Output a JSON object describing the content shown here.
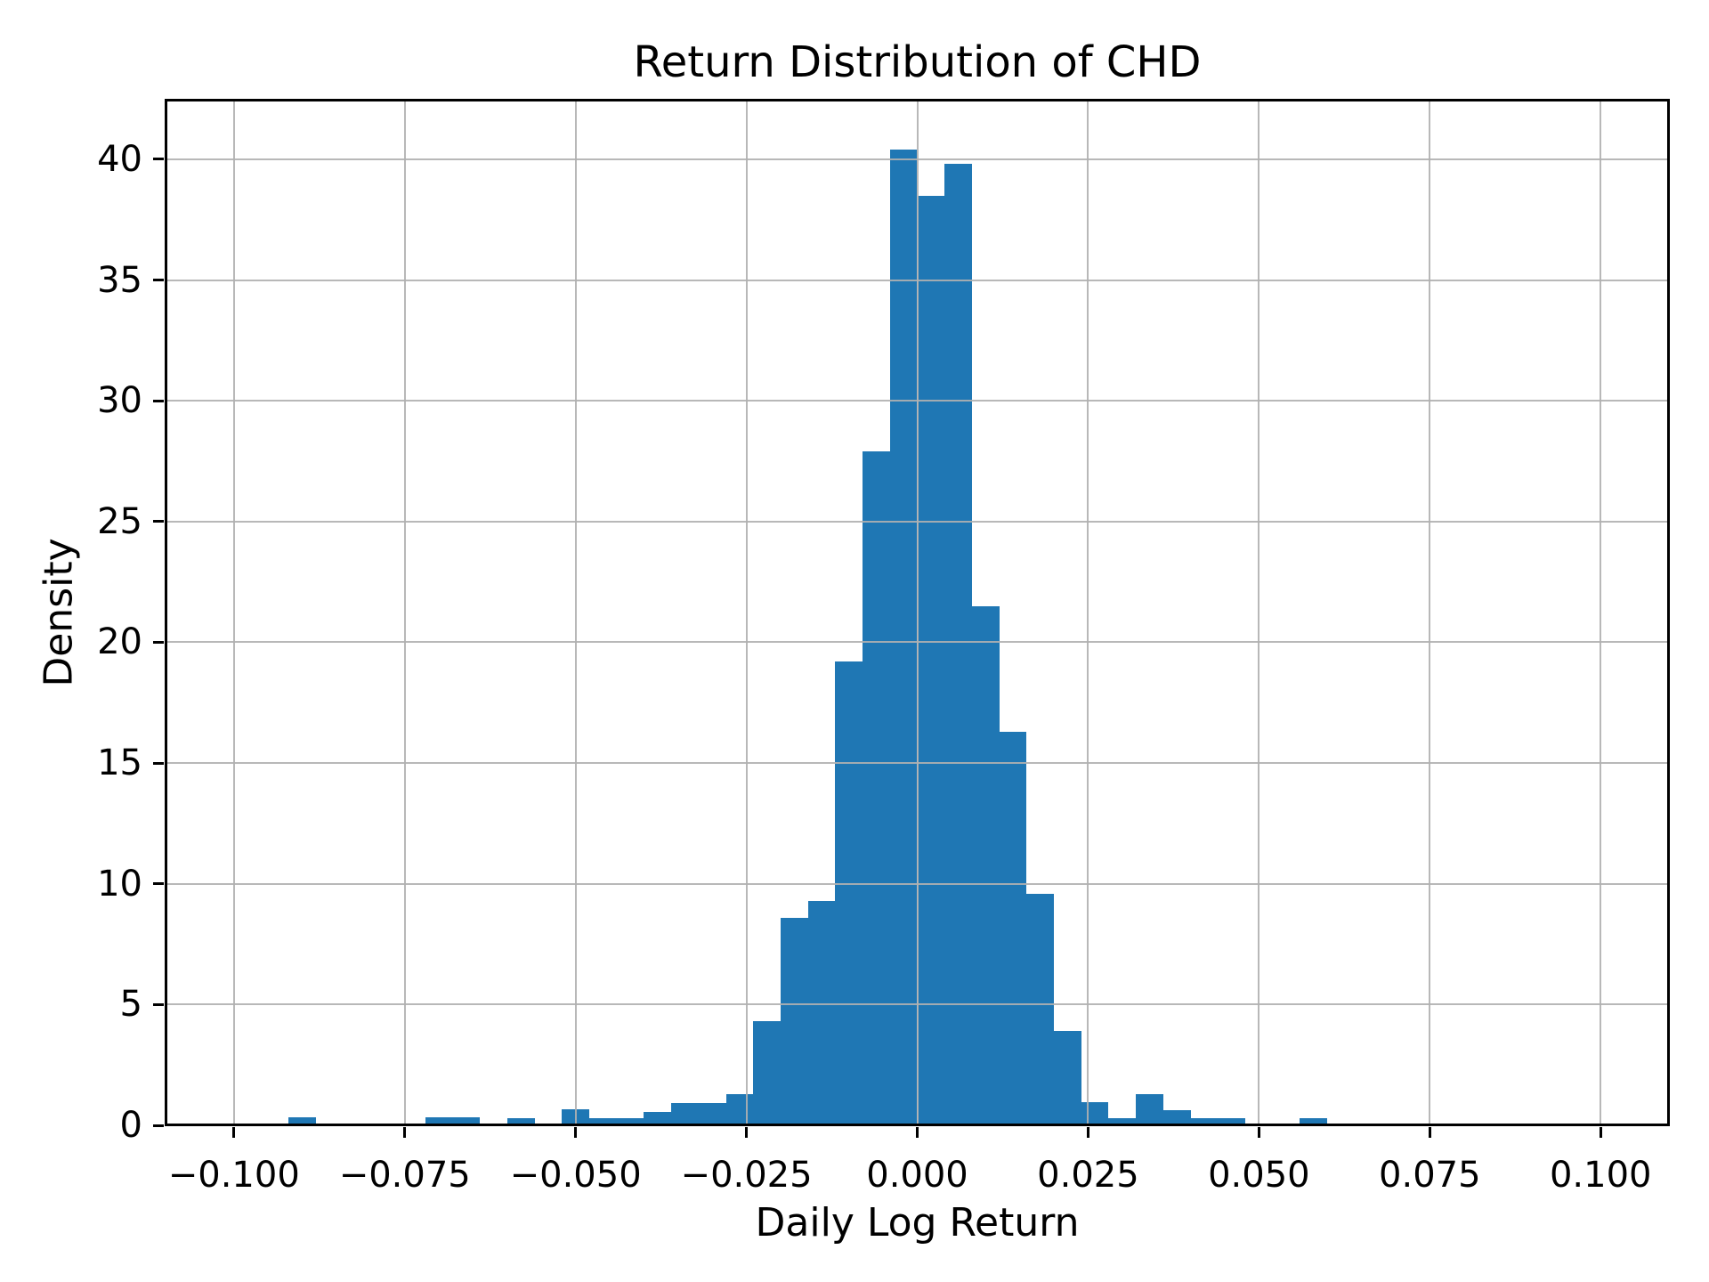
{
  "title": "Return Distribution of CHD",
  "axes": {
    "xlabel": "Daily Log Return",
    "ylabel": "Density"
  },
  "colors": {
    "bar": "#1f77b4",
    "grid": "#b0b0b0",
    "axis": "#000000",
    "background": "#ffffff",
    "text": "#000000"
  },
  "chart_data": {
    "type": "bar",
    "subtype": "histogram",
    "title": "Return Distribution of CHD",
    "xlabel": "Daily Log Return",
    "ylabel": "Density",
    "xlim": [
      -0.11,
      0.11
    ],
    "ylim": [
      0,
      42.47
    ],
    "grid": true,
    "legend": false,
    "bin_width": 0.004,
    "bin_starts": [
      -0.092,
      -0.088,
      -0.084,
      -0.08,
      -0.076,
      -0.072,
      -0.068,
      -0.064,
      -0.06,
      -0.056,
      -0.052,
      -0.048,
      -0.044,
      -0.04,
      -0.036,
      -0.032,
      -0.028,
      -0.024,
      -0.02,
      -0.016,
      -0.012,
      -0.008,
      -0.004,
      0.0,
      0.004,
      0.008,
      0.012,
      0.016,
      0.02,
      0.024,
      0.028,
      0.032,
      0.036,
      0.04,
      0.044,
      0.048,
      0.052,
      0.056
    ],
    "heights": [
      0.34,
      0,
      0,
      0,
      0,
      0.32,
      0.32,
      0,
      0.3,
      0,
      0.67,
      0.28,
      0.28,
      0.56,
      0.93,
      0.93,
      1.3,
      4.3,
      8.6,
      9.3,
      19.2,
      27.9,
      40.4,
      38.5,
      39.8,
      21.5,
      16.3,
      9.6,
      3.9,
      0.96,
      0.28,
      1.3,
      0.63,
      0.28,
      0.28,
      0,
      0,
      0.28
    ],
    "xticks": [
      {
        "value": -0.1,
        "label": "−0.100"
      },
      {
        "value": -0.075,
        "label": "−0.075"
      },
      {
        "value": -0.05,
        "label": "−0.050"
      },
      {
        "value": -0.025,
        "label": "−0.025"
      },
      {
        "value": 0.0,
        "label": "0.000"
      },
      {
        "value": 0.025,
        "label": "0.025"
      },
      {
        "value": 0.05,
        "label": "0.050"
      },
      {
        "value": 0.075,
        "label": "0.075"
      },
      {
        "value": 0.1,
        "label": "0.100"
      }
    ],
    "yticks": [
      {
        "value": 0,
        "label": "0"
      },
      {
        "value": 5,
        "label": "5"
      },
      {
        "value": 10,
        "label": "10"
      },
      {
        "value": 15,
        "label": "15"
      },
      {
        "value": 20,
        "label": "20"
      },
      {
        "value": 25,
        "label": "25"
      },
      {
        "value": 30,
        "label": "30"
      },
      {
        "value": 35,
        "label": "35"
      },
      {
        "value": 40,
        "label": "40"
      }
    ]
  }
}
